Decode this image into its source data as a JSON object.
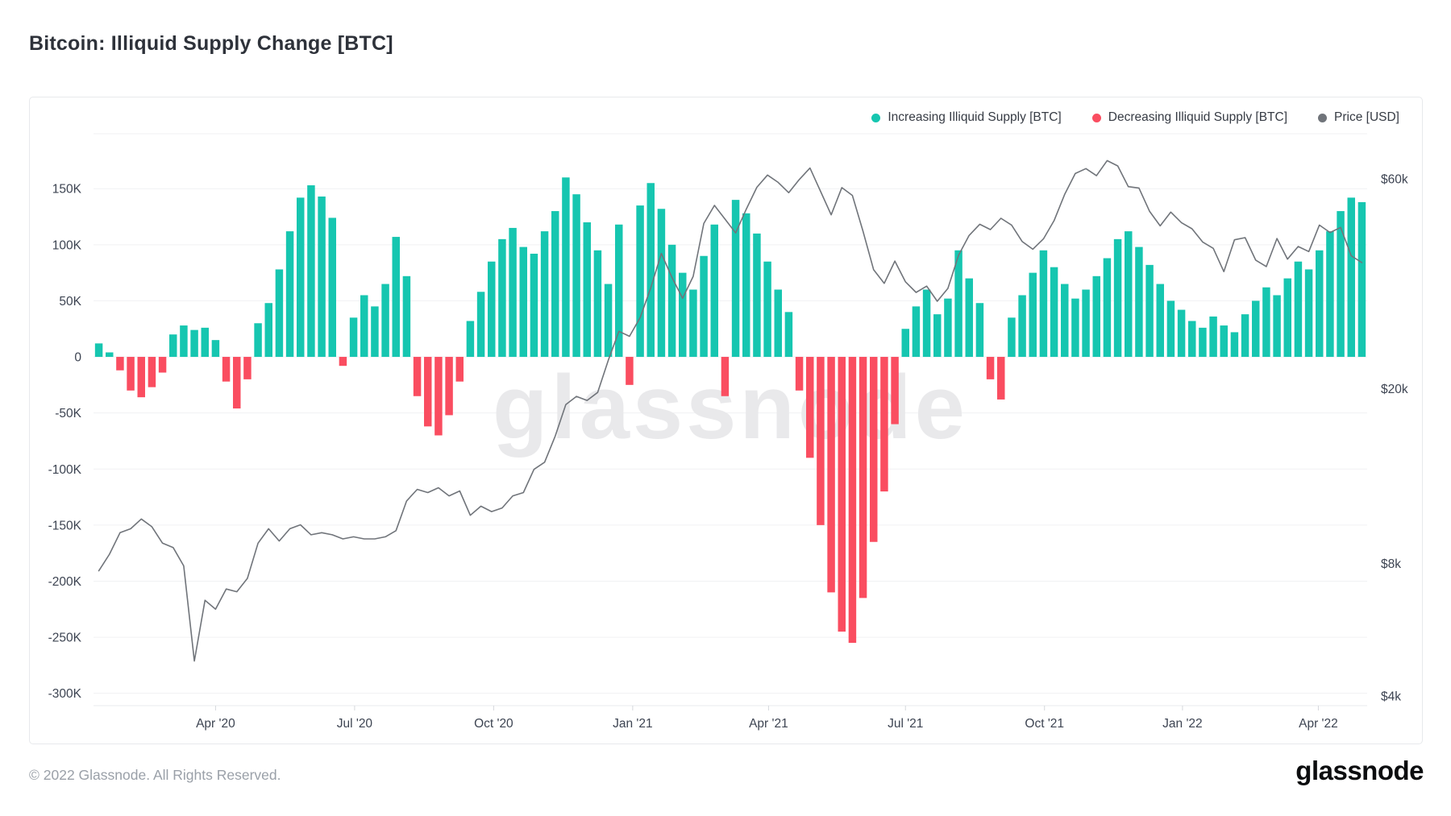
{
  "page": {
    "title": "Bitcoin: Illiquid Supply Change [BTC]",
    "watermark": "glassnode",
    "footer_copyright": "© 2022 Glassnode. All Rights Reserved.",
    "brand_logo": "glassnode"
  },
  "legend": [
    {
      "id": "increasing",
      "label": "Increasing Illiquid Supply [BTC]",
      "color": "#16c6b0"
    },
    {
      "id": "decreasing",
      "label": "Decreasing Illiquid Supply [BTC]",
      "color": "#fa4d60"
    },
    {
      "id": "price",
      "label": "Price [USD]",
      "color": "#70747a"
    }
  ],
  "chart_data": {
    "type": "bar+line",
    "title": "Bitcoin: Illiquid Supply Change [BTC]",
    "interval": "weekly",
    "start_date": "2020-01-13",
    "grid": true,
    "legend_position": "top-right",
    "bar_series": {
      "name": "Illiquid Supply Change",
      "unit": "thousand BTC",
      "positive_color": "#16c6b0",
      "negative_color": "#fa4d60",
      "values_k_btc": [
        12,
        4,
        -12,
        -30,
        -36,
        -27,
        -14,
        20,
        28,
        24,
        26,
        15,
        -22,
        -46,
        -20,
        30,
        48,
        78,
        112,
        142,
        153,
        143,
        124,
        -8,
        35,
        55,
        45,
        65,
        107,
        72,
        -35,
        -62,
        -70,
        -52,
        -22,
        32,
        58,
        85,
        105,
        115,
        98,
        92,
        112,
        130,
        160,
        145,
        120,
        95,
        65,
        118,
        -25,
        135,
        155,
        132,
        100,
        75,
        60,
        90,
        118,
        -35,
        140,
        128,
        110,
        85,
        60,
        40,
        -30,
        -90,
        -150,
        -210,
        -245,
        -255,
        -215,
        -165,
        -120,
        -60,
        25,
        45,
        60,
        38,
        52,
        95,
        70,
        48,
        -20,
        -38,
        35,
        55,
        75,
        95,
        80,
        65,
        52,
        60,
        72,
        88,
        105,
        112,
        98,
        82,
        65,
        50,
        42,
        32,
        26,
        36,
        28,
        22,
        38,
        50,
        62,
        55,
        70,
        85,
        78,
        95,
        112,
        130,
        142,
        138
      ]
    },
    "line_series": {
      "name": "Price",
      "unit": "thousand USD",
      "color": "#70747a",
      "values_k_usd": [
        7.7,
        8.4,
        9.4,
        9.6,
        10.1,
        9.7,
        8.9,
        8.7,
        7.9,
        4.8,
        6.6,
        6.3,
        7.0,
        6.9,
        7.4,
        8.9,
        9.6,
        9.0,
        9.6,
        9.8,
        9.3,
        9.4,
        9.3,
        9.1,
        9.2,
        9.1,
        9.1,
        9.2,
        9.5,
        11.1,
        11.8,
        11.6,
        11.9,
        11.4,
        11.7,
        10.3,
        10.8,
        10.5,
        10.7,
        11.4,
        11.6,
        13.1,
        13.6,
        15.6,
        18.4,
        19.2,
        18.8,
        19.6,
        23.2,
        27.0,
        26.3,
        29.0,
        33.9,
        40.6,
        35.8,
        32.1,
        36.0,
        47.5,
        52.2,
        48.6,
        45.2,
        51.2,
        57.4,
        61.2,
        58.9,
        55.8,
        59.8,
        63.5,
        56.2,
        49.7,
        57.3,
        55.0,
        45.6,
        37.3,
        34.7,
        39.0,
        35.0,
        33.1,
        34.2,
        31.6,
        33.8,
        40.2,
        44.6,
        47.3,
        46.0,
        48.8,
        47.1,
        43.2,
        41.5,
        43.8,
        48.2,
        55.3,
        61.7,
        63.3,
        61.0,
        66.0,
        64.2,
        57.6,
        57.2,
        50.6,
        46.9,
        50.4,
        47.7,
        46.2,
        43.1,
        41.7,
        36.9,
        43.6,
        44.1,
        39.2,
        37.9,
        43.9,
        39.4,
        42.1,
        41.0,
        47.1,
        45.3,
        46.5,
        40.1,
        38.7
      ]
    },
    "left_axis": {
      "unit": "BTC",
      "tick_values_k": [
        150,
        100,
        50,
        0,
        -50,
        -100,
        -150,
        -200,
        -250,
        -300
      ],
      "tick_labels": [
        "150K",
        "100K",
        "50K",
        "0",
        "-50K",
        "-100K",
        "-150K",
        "-200K",
        "-250K",
        "-300K"
      ],
      "range_k": [
        -311,
        199
      ]
    },
    "right_axis": {
      "unit": "USD",
      "scale": "log",
      "tick_values_k": [
        60,
        20,
        8,
        4
      ],
      "tick_labels": [
        "$60k",
        "$20k",
        "$8k",
        "$4k"
      ],
      "range_k": [
        3.8,
        76
      ]
    },
    "x_axis": {
      "ticks": [
        {
          "label": "Apr '20",
          "week": 11.0
        },
        {
          "label": "Jul '20",
          "week": 24.1
        },
        {
          "label": "Oct '20",
          "week": 37.2
        },
        {
          "label": "Jan '21",
          "week": 50.3
        },
        {
          "label": "Apr '21",
          "week": 63.1
        },
        {
          "label": "Jul '21",
          "week": 76.0
        },
        {
          "label": "Oct '21",
          "week": 89.1
        },
        {
          "label": "Jan '22",
          "week": 102.1
        },
        {
          "label": "Apr '22",
          "week": 114.9
        }
      ]
    },
    "style": {
      "grid_color": "#f0f1f3",
      "axis_text_color": "#3d4452",
      "tick_mark_color": "#d5d8dc",
      "bottom_border_color": "#e9ebee",
      "watermark_color": "#e9e9eb"
    }
  }
}
